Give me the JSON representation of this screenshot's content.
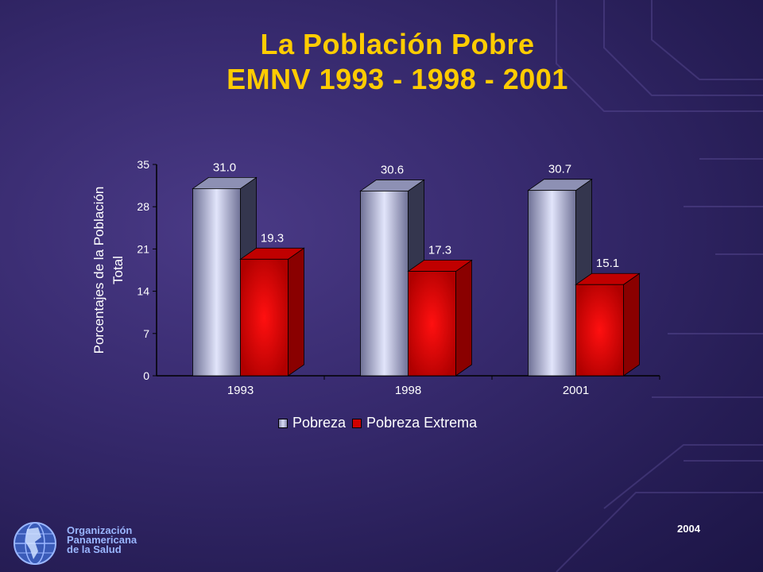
{
  "title": {
    "line1": "La Población Pobre",
    "line2": "EMNV 1993 - 1998 - 2001"
  },
  "chart_data": {
    "type": "bar",
    "categories": [
      "1993",
      "1998",
      "2001"
    ],
    "series": [
      {
        "name": "Pobreza",
        "values": [
          31.0,
          30.6,
          30.7
        ],
        "color": "#c8cbe8"
      },
      {
        "name": "Pobreza Extrema",
        "values": [
          19.3,
          17.3,
          15.1
        ],
        "color": "#d00000"
      }
    ],
    "data_labels": {
      "Pobreza": [
        "31.0",
        "30.6",
        "30.7"
      ],
      "Pobreza Extrema": [
        "19.3",
        "17.3",
        "15.1"
      ]
    },
    "ylabel_line1": "Porcentajes de la Población",
    "ylabel_line2": "Total",
    "ylim": [
      0,
      35
    ],
    "yticks": [
      "0",
      "7",
      "14",
      "21",
      "28",
      "35"
    ],
    "legend_position": "bottom",
    "grid": false,
    "style": "3d"
  },
  "legend": {
    "items": [
      "Pobreza",
      "Pobreza Extrema"
    ]
  },
  "footer": {
    "org_line1": "Organización",
    "org_line2": "Panamericana",
    "org_line3": "de la Salud",
    "year": "2004"
  },
  "colors": {
    "title": "#ffcc00",
    "org_text": "#9ab6ff",
    "background": "#372a6e"
  }
}
